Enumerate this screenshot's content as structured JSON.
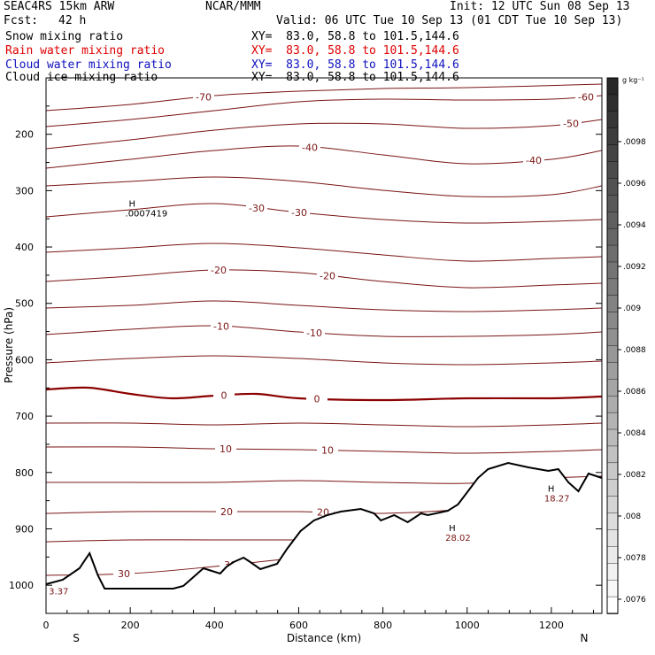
{
  "header": {
    "model": "SEAC4RS 15km ARW",
    "org": "NCAR/MMM",
    "init": "Init: 12 UTC Sun 08 Sep 13",
    "fcst_label": "Fcst:",
    "fcst_value": "42 h",
    "valid": "Valid: 06 UTC Tue 10 Sep 13 (01 CDT Tue 10 Sep 13)"
  },
  "fields": [
    {
      "label": "Snow mixing ratio",
      "xy": "XY=  83.0, 58.8 to 101.5,144.6",
      "color": "#000000"
    },
    {
      "label": "Rain water mixing ratio",
      "xy": "XY=  83.0, 58.8 to 101.5,144.6",
      "color": "#e00000"
    },
    {
      "label": "Cloud water mixing ratio",
      "xy": "XY=  83.0, 58.8 to 101.5,144.6",
      "color": "#1010c0"
    },
    {
      "label": "Cloud ice mixing ratio",
      "xy": "XY=  83.0, 58.8 to 101.5,144.6",
      "color": "#000000"
    }
  ],
  "colorbar": {
    "unit": "g kg⁻¹",
    "ticks": [
      ".0098",
      ".0096",
      ".0094",
      ".0092",
      ".009",
      ".0088",
      ".0086",
      ".0084",
      ".0082",
      ".008",
      ".0078",
      ".0076"
    ]
  },
  "chart_data": {
    "type": "contour",
    "xlabel": "Distance (km)",
    "ylabel": "Pressure (hPa)",
    "xlim": [
      0,
      1320
    ],
    "ylim": [
      1050,
      100
    ],
    "xticks": [
      0,
      200,
      400,
      600,
      800,
      1000,
      1200
    ],
    "yticks": [
      200,
      300,
      400,
      500,
      600,
      700,
      800,
      900,
      1000
    ],
    "x_end_labels": {
      "left": "S",
      "right": "N"
    },
    "contour_color": "#7a1414",
    "zero_contour_color": "#8b0000",
    "isotherms": [
      {
        "value": -70,
        "label": "-70",
        "points": [
          [
            0,
            125
          ],
          [
            200,
            118
          ],
          [
            400,
            108
          ],
          [
            600,
            103
          ],
          [
            800,
            100
          ],
          [
            1000,
            99
          ],
          [
            1320,
            95
          ]
        ]
      },
      {
        "value": -60,
        "label": "-60",
        "points": [
          [
            0,
            143
          ],
          [
            200,
            135
          ],
          [
            400,
            125
          ],
          [
            600,
            115
          ],
          [
            800,
            112
          ],
          [
            1000,
            113
          ],
          [
            1200,
            112
          ],
          [
            1320,
            108
          ]
        ]
      },
      {
        "value": -50,
        "label": "-50",
        "points": [
          [
            0,
            168
          ],
          [
            200,
            158
          ],
          [
            400,
            147
          ],
          [
            600,
            140
          ],
          [
            800,
            140
          ],
          [
            1000,
            145
          ],
          [
            1200,
            142
          ],
          [
            1320,
            135
          ]
        ]
      },
      {
        "value": -40,
        "label": "-40",
        "points": [
          [
            0,
            190
          ],
          [
            200,
            180
          ],
          [
            400,
            170
          ],
          [
            600,
            165
          ],
          [
            800,
            175
          ],
          [
            1000,
            185
          ],
          [
            1200,
            180
          ],
          [
            1320,
            170
          ]
        ]
      },
      {
        "value": -35,
        "label": "",
        "points": [
          [
            0,
            210
          ],
          [
            200,
            205
          ],
          [
            400,
            200
          ],
          [
            600,
            205
          ],
          [
            800,
            215
          ],
          [
            1000,
            222
          ],
          [
            1200,
            220
          ],
          [
            1320,
            210
          ]
        ]
      },
      {
        "value": -30,
        "label": "-30",
        "points": [
          [
            0,
            245
          ],
          [
            200,
            237
          ],
          [
            400,
            230
          ],
          [
            600,
            240
          ],
          [
            800,
            248
          ],
          [
            1000,
            252
          ],
          [
            1200,
            250
          ],
          [
            1320,
            248
          ]
        ]
      },
      {
        "value": -25,
        "label": "",
        "points": [
          [
            0,
            285
          ],
          [
            200,
            280
          ],
          [
            400,
            275
          ],
          [
            600,
            280
          ],
          [
            800,
            288
          ],
          [
            1000,
            295
          ],
          [
            1200,
            292
          ],
          [
            1320,
            290
          ]
        ]
      },
      {
        "value": -20,
        "label": "-20",
        "points": [
          [
            0,
            318
          ],
          [
            200,
            312
          ],
          [
            400,
            305
          ],
          [
            600,
            308
          ],
          [
            800,
            318
          ],
          [
            1000,
            325
          ],
          [
            1200,
            322
          ],
          [
            1320,
            320
          ]
        ]
      },
      {
        "value": -15,
        "label": "",
        "points": [
          [
            0,
            348
          ],
          [
            200,
            345
          ],
          [
            400,
            340
          ],
          [
            600,
            345
          ],
          [
            800,
            350
          ],
          [
            1000,
            352
          ],
          [
            1200,
            350
          ],
          [
            1320,
            348
          ]
        ]
      },
      {
        "value": -10,
        "label": "-10",
        "points": [
          [
            0,
            378
          ],
          [
            200,
            372
          ],
          [
            400,
            368
          ],
          [
            600,
            375
          ],
          [
            800,
            380
          ],
          [
            1000,
            380
          ],
          [
            1200,
            378
          ],
          [
            1320,
            375
          ]
        ]
      },
      {
        "value": -5,
        "label": "",
        "points": [
          [
            0,
            410
          ],
          [
            200,
            405
          ],
          [
            400,
            402
          ],
          [
            600,
            405
          ],
          [
            800,
            410
          ],
          [
            1000,
            412
          ],
          [
            1200,
            410
          ],
          [
            1320,
            408
          ]
        ]
      },
      {
        "value": 0,
        "label": "0",
        "points": [
          [
            0,
            440
          ],
          [
            100,
            438
          ],
          [
            200,
            445
          ],
          [
            300,
            450
          ],
          [
            400,
            447
          ],
          [
            500,
            445
          ],
          [
            600,
            450
          ],
          [
            800,
            452
          ],
          [
            1000,
            450
          ],
          [
            1200,
            450
          ],
          [
            1320,
            448
          ]
        ]
      },
      {
        "value": 5,
        "label": "",
        "points": [
          [
            0,
            478
          ],
          [
            200,
            478
          ],
          [
            400,
            480
          ],
          [
            600,
            478
          ],
          [
            800,
            480
          ],
          [
            1000,
            482
          ],
          [
            1200,
            480
          ],
          [
            1320,
            478
          ]
        ]
      },
      {
        "value": 10,
        "label": "10",
        "points": [
          [
            0,
            505
          ],
          [
            200,
            505
          ],
          [
            400,
            507
          ],
          [
            600,
            508
          ],
          [
            800,
            510
          ],
          [
            1000,
            512
          ],
          [
            1200,
            510
          ],
          [
            1320,
            508
          ]
        ]
      },
      {
        "value": 15,
        "label": "",
        "points": [
          [
            0,
            545
          ],
          [
            200,
            545
          ],
          [
            400,
            545
          ],
          [
            600,
            543
          ],
          [
            800,
            545
          ],
          [
            1000,
            546
          ],
          [
            1200,
            540
          ],
          [
            1320,
            538
          ]
        ]
      },
      {
        "value": 20,
        "label": "20",
        "points": [
          [
            0,
            580
          ],
          [
            200,
            578
          ],
          [
            400,
            578
          ],
          [
            600,
            578
          ],
          [
            800,
            580
          ],
          [
            1000,
            575
          ],
          [
            1200,
            565
          ],
          [
            1320,
            560
          ]
        ]
      },
      {
        "value": 25,
        "label": "",
        "points": [
          [
            0,
            612
          ],
          [
            200,
            610
          ],
          [
            400,
            610
          ],
          [
            600,
            610
          ],
          [
            800,
            608
          ],
          [
            1000,
            600
          ],
          [
            1200,
            585
          ]
        ]
      },
      {
        "value": 30,
        "label": "30",
        "points": [
          [
            0,
            650
          ],
          [
            200,
            648
          ],
          [
            400,
            640
          ],
          [
            600,
            630
          ],
          [
            800,
            620
          ],
          [
            1000,
            610
          ]
        ]
      }
    ],
    "terrain": [
      [
        0,
        660
      ],
      [
        50,
        655
      ],
      [
        100,
        642
      ],
      [
        130,
        625
      ],
      [
        155,
        650
      ],
      [
        175,
        665
      ],
      [
        250,
        665
      ],
      [
        380,
        665
      ],
      [
        410,
        662
      ],
      [
        440,
        652
      ],
      [
        470,
        642
      ],
      [
        520,
        648
      ],
      [
        540,
        640
      ],
      [
        560,
        635
      ],
      [
        590,
        630
      ],
      [
        610,
        635
      ],
      [
        640,
        643
      ],
      [
        690,
        637
      ],
      [
        720,
        620
      ],
      [
        760,
        600
      ],
      [
        800,
        588
      ],
      [
        840,
        582
      ],
      [
        880,
        578
      ],
      [
        940,
        575
      ],
      [
        980,
        580
      ],
      [
        1000,
        588
      ],
      [
        1040,
        582
      ],
      [
        1080,
        590
      ],
      [
        1120,
        580
      ],
      [
        1140,
        582
      ],
      [
        1200,
        577
      ],
      [
        1230,
        570
      ],
      [
        1260,
        555
      ],
      [
        1290,
        540
      ],
      [
        1320,
        530
      ],
      [
        1380,
        523
      ],
      [
        1440,
        528
      ],
      [
        1500,
        532
      ],
      [
        1530,
        530
      ],
      [
        1560,
        545
      ],
      [
        1590,
        555
      ],
      [
        1620,
        535
      ],
      [
        1660,
        540
      ]
    ],
    "terrain_source": "note-pixels",
    "extrema": [
      {
        "label": "H",
        "value": ".0007419",
        "x": 205,
        "p": 335
      },
      {
        "label": "H",
        "value": "18.27",
        "x": 1200,
        "p": 840
      },
      {
        "label": "H",
        "value": "28.02",
        "x": 965,
        "p": 910
      }
    ],
    "edge_labels": [
      {
        "value": "3.37",
        "x": 15,
        "p": 1010
      }
    ]
  }
}
